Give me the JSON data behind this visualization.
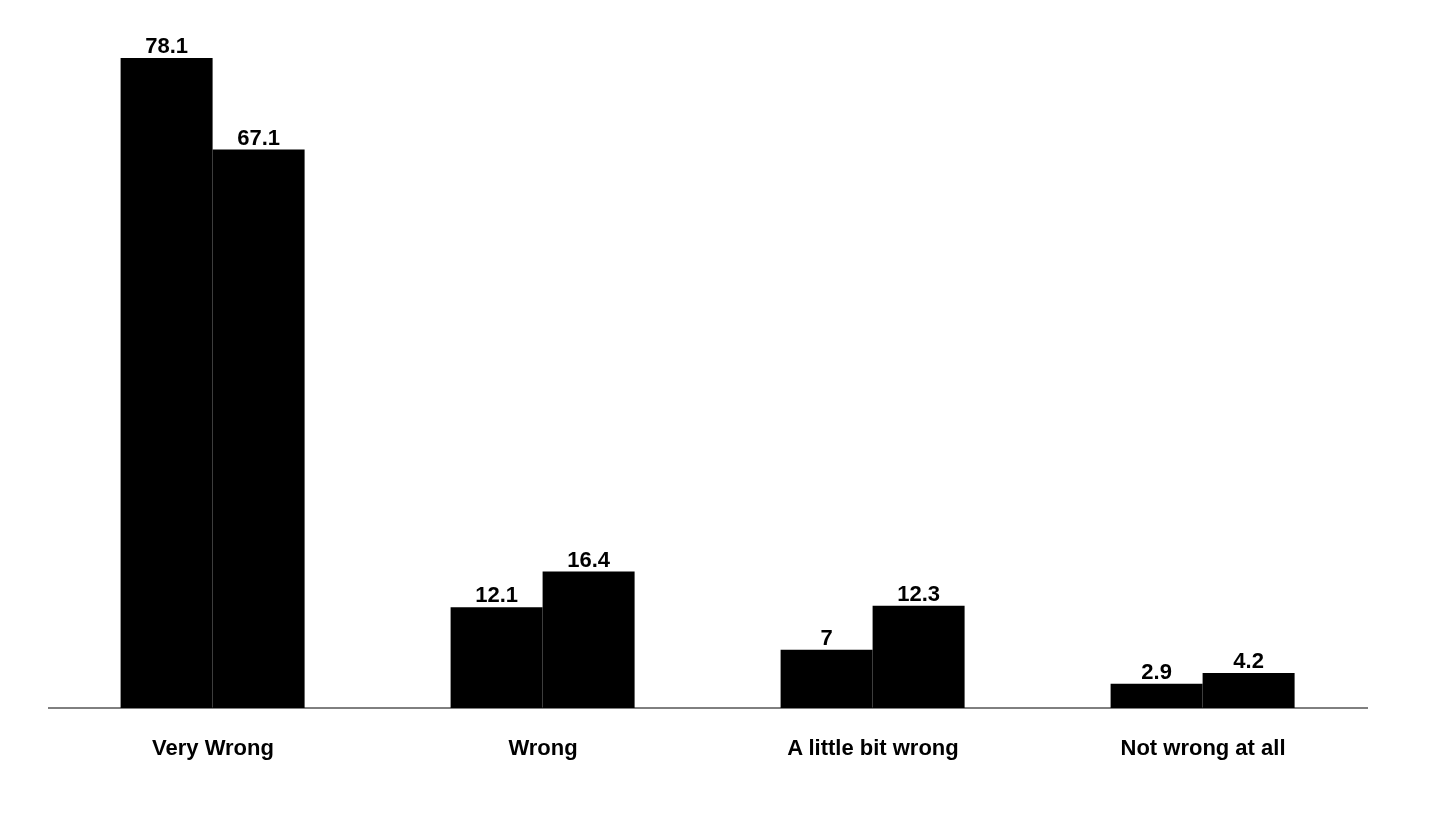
{
  "chart_data": {
    "type": "bar",
    "categories": [
      "Very Wrong",
      "Wrong",
      "A little bit wrong",
      "Not wrong at all"
    ],
    "series": [
      {
        "color": "#000000",
        "values": [
          78.1,
          12.1,
          7,
          2.9
        ]
      },
      {
        "color": "#000000",
        "values": [
          67.1,
          16.4,
          12.3,
          4.2
        ]
      }
    ],
    "data_labels": true,
    "grid": false,
    "legend": false
  }
}
